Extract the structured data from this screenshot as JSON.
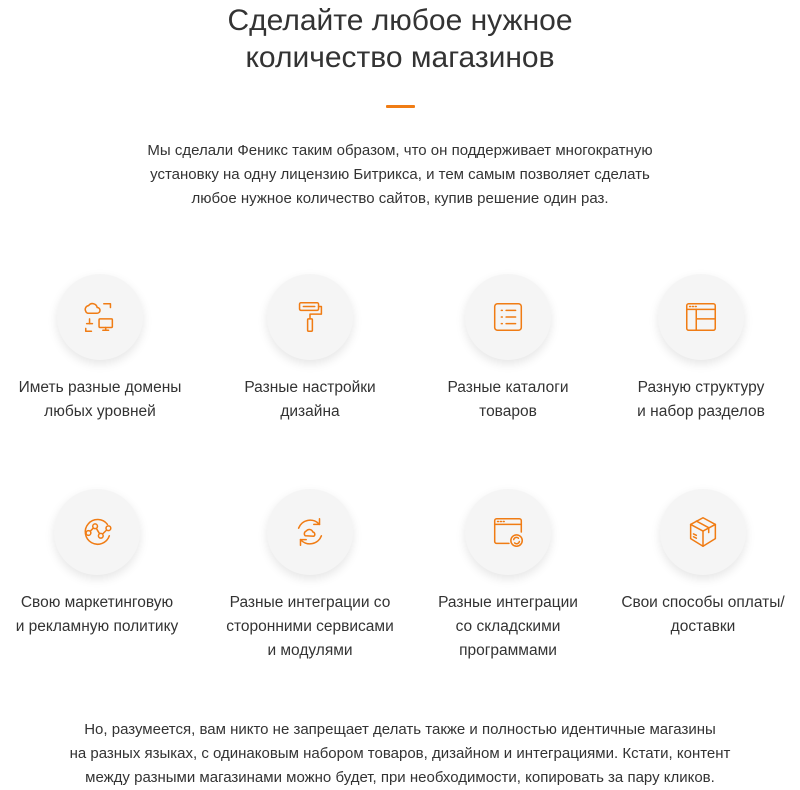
{
  "title": {
    "line1": "Сделайте любое нужное",
    "line2": "количество магазинов"
  },
  "lead": {
    "line1": "Мы сделали Феникс таким образом, что он поддерживает многократную",
    "line2": "установку на одну лицензию Битрикса, и тем самым позволяет сделать",
    "line3": "любое нужное количество сайтов, купив решение один раз."
  },
  "accent_color": "#f07c14",
  "features": [
    {
      "icon": "domains-icon",
      "lines": [
        "Иметь разные домены",
        "любых уровней"
      ]
    },
    {
      "icon": "paint-roller-icon",
      "lines": [
        "Разные настройки",
        "дизайна"
      ]
    },
    {
      "icon": "catalog-list-icon",
      "lines": [
        "Разные каталоги",
        "товаров"
      ]
    },
    {
      "icon": "site-structure-icon",
      "lines": [
        "Разную структуру",
        "и набор разделов"
      ]
    },
    {
      "icon": "marketing-graph-icon",
      "lines": [
        "Свою маркетинговую",
        "и рекламную политику"
      ]
    },
    {
      "icon": "cloud-sync-icon",
      "lines": [
        "Разные интеграции со",
        "сторонними сервисами",
        "и модулями"
      ]
    },
    {
      "icon": "warehouse-sync-icon",
      "lines": [
        "Разные интеграции",
        "со складскими",
        "программами"
      ]
    },
    {
      "icon": "delivery-box-icon",
      "lines": [
        "Свои способы оплаты/",
        "доставки"
      ]
    }
  ],
  "footer": {
    "line1": "Но, разумеется, вам никто не запрещает делать также и полностью идентичные магазины",
    "line2": "на разных языках, с одинаковым набором товаров, дизайном и интеграциями. Кстати, контент",
    "line3": "между разными магазинами можно будет, при необходимости, копировать за пару кликов."
  }
}
